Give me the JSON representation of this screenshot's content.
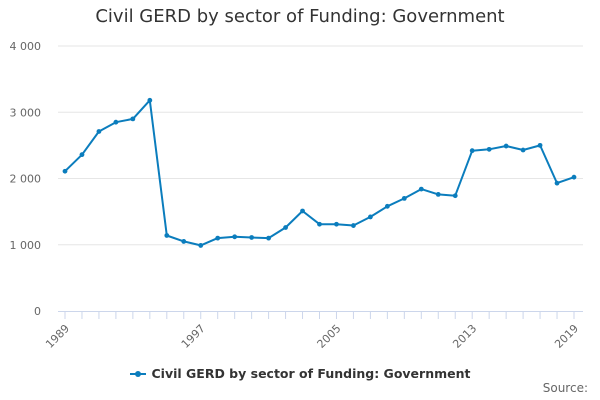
{
  "chart_data": {
    "type": "line",
    "title": "Civil GERD by sector of Funding: Government",
    "xlabel": "",
    "ylabel": "",
    "x": [
      1989,
      1990,
      1991,
      1992,
      1993,
      1994,
      1995,
      1996,
      1997,
      1998,
      1999,
      2000,
      2001,
      2002,
      2003,
      2004,
      2005,
      2006,
      2007,
      2008,
      2009,
      2010,
      2011,
      2012,
      2013,
      2014,
      2015,
      2016,
      2017,
      2018,
      2019
    ],
    "series": [
      {
        "name": "Civil GERD by sector of Funding: Government",
        "values": [
          2110,
          2360,
          2710,
          2850,
          2900,
          3180,
          1140,
          1050,
          990,
          1100,
          1120,
          1110,
          1100,
          1260,
          1510,
          1310,
          1310,
          1290,
          1420,
          1580,
          1700,
          1840,
          1760,
          1740,
          2420,
          2440,
          2490,
          2430,
          2500,
          1930,
          2020
        ]
      }
    ],
    "x_ticks": [
      "1989",
      "1997",
      "2005",
      "2013",
      "2019"
    ],
    "x_tick_values": [
      1989,
      1997,
      2005,
      2013,
      2019
    ],
    "y_ticks": [
      "0",
      "1 000",
      "2 000",
      "3 000",
      "4 000"
    ],
    "y_tick_values": [
      0,
      1000,
      2000,
      3000,
      4000
    ],
    "ylim": [
      0,
      4000
    ],
    "xlim": [
      1989,
      2019
    ],
    "grid": "horizontal",
    "legend_position": "bottom",
    "color": "#0b7dbd"
  },
  "source_label": "Source:"
}
